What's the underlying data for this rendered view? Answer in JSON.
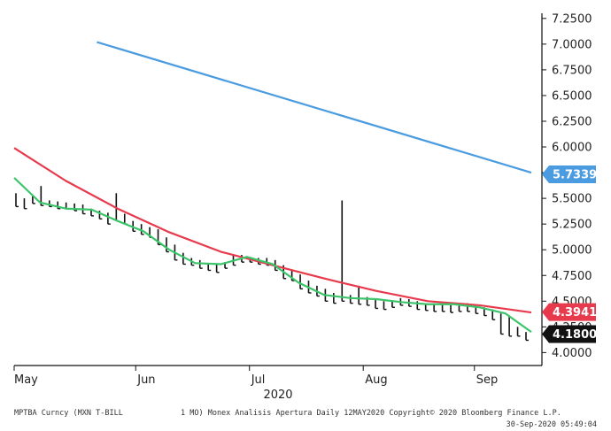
{
  "chart_data": {
    "type": "line",
    "security": "MPTBA Curncy (MXN T-BILL",
    "ylim": [
      3.9,
      7.3
    ],
    "y_ticks": [
      "4.0000",
      "4.2500",
      "4.5000",
      "4.7500",
      "5.0000",
      "5.2500",
      "5.5000",
      "5.7500",
      "6.0000",
      "6.2500",
      "6.5000",
      "6.7500",
      "7.0000",
      "7.2500"
    ],
    "x_month_labels": [
      "May",
      "Jun",
      "Jul",
      "Aug",
      "Sep"
    ],
    "x_year_label": "2020",
    "price_bars": [
      [
        5.55,
        5.42
      ],
      [
        5.5,
        5.4
      ],
      [
        5.52,
        5.45
      ],
      [
        5.62,
        5.43
      ],
      [
        5.48,
        5.42
      ],
      [
        5.47,
        5.4
      ],
      [
        5.46,
        5.4
      ],
      [
        5.45,
        5.38
      ],
      [
        5.44,
        5.35
      ],
      [
        5.4,
        5.33
      ],
      [
        5.38,
        5.3
      ],
      [
        5.36,
        5.25
      ],
      [
        5.55,
        5.28
      ],
      [
        5.35,
        5.25
      ],
      [
        5.28,
        5.18
      ],
      [
        5.25,
        5.15
      ],
      [
        5.22,
        5.12
      ],
      [
        5.2,
        5.05
      ],
      [
        5.12,
        4.98
      ],
      [
        5.05,
        4.9
      ],
      [
        4.97,
        4.86
      ],
      [
        4.92,
        4.85
      ],
      [
        4.9,
        4.82
      ],
      [
        4.86,
        4.8
      ],
      [
        4.86,
        4.78
      ],
      [
        4.88,
        4.82
      ],
      [
        4.95,
        4.85
      ],
      [
        4.95,
        4.88
      ],
      [
        4.93,
        4.88
      ],
      [
        4.92,
        4.86
      ],
      [
        4.92,
        4.85
      ],
      [
        4.9,
        4.8
      ],
      [
        4.85,
        4.72
      ],
      [
        4.8,
        4.7
      ],
      [
        4.76,
        4.62
      ],
      [
        4.7,
        4.58
      ],
      [
        4.65,
        4.55
      ],
      [
        4.62,
        4.5
      ],
      [
        4.58,
        4.48
      ],
      [
        5.48,
        4.5
      ],
      [
        4.56,
        4.48
      ],
      [
        4.65,
        4.47
      ],
      [
        4.54,
        4.46
      ],
      [
        4.52,
        4.43
      ],
      [
        4.5,
        4.42
      ],
      [
        4.51,
        4.44
      ],
      [
        4.53,
        4.46
      ],
      [
        4.52,
        4.45
      ],
      [
        4.5,
        4.42
      ],
      [
        4.48,
        4.41
      ],
      [
        4.48,
        4.4
      ],
      [
        4.47,
        4.4
      ],
      [
        4.46,
        4.39
      ],
      [
        4.47,
        4.4
      ],
      [
        4.48,
        4.4
      ],
      [
        4.46,
        4.38
      ],
      [
        4.44,
        4.36
      ],
      [
        4.42,
        4.32
      ],
      [
        4.38,
        4.18
      ],
      [
        4.36,
        4.16
      ],
      [
        4.25,
        4.16
      ],
      [
        4.2,
        4.12
      ]
    ],
    "series": [
      {
        "color": "#4a9be0",
        "x": [
          0.16,
          1.0
        ],
        "y": [
          7.02,
          5.75
        ]
      },
      {
        "color": "#e83a4d",
        "x": [
          0.0,
          0.1,
          0.2,
          0.3,
          0.4,
          0.5,
          0.6,
          0.7,
          0.8,
          0.9,
          1.0
        ],
        "y": [
          5.99,
          5.67,
          5.4,
          5.17,
          4.98,
          4.85,
          4.72,
          4.6,
          4.5,
          4.46,
          4.39
        ]
      },
      {
        "color": "#3cc46a",
        "x": [
          0.0,
          0.05,
          0.1,
          0.15,
          0.2,
          0.25,
          0.3,
          0.35,
          0.4,
          0.45,
          0.5,
          0.55,
          0.6,
          0.65,
          0.7,
          0.75,
          0.8,
          0.85,
          0.9,
          0.95,
          1.0
        ],
        "y": [
          5.7,
          5.46,
          5.4,
          5.39,
          5.28,
          5.18,
          5.0,
          4.87,
          4.86,
          4.93,
          4.86,
          4.68,
          4.56,
          4.53,
          4.52,
          4.49,
          4.47,
          4.47,
          4.44,
          4.38,
          4.2
        ]
      }
    ],
    "last_values": [
      {
        "label": "5.7339",
        "color": "#4a9be0"
      },
      {
        "label": "4.3941",
        "color": "#e83a4d"
      },
      {
        "label": "4.1800",
        "color": "#111111"
      }
    ],
    "grid": false
  },
  "footer": {
    "security": "MPTBA Curncy (MXN T-BILL",
    "study": "1 MO) Monex Analisis Apertura  Daily 12MAY2020 Copyright© 2020 Bloomberg Finance L.P.",
    "timestamp": "30-Sep-2020 05:49:04"
  }
}
